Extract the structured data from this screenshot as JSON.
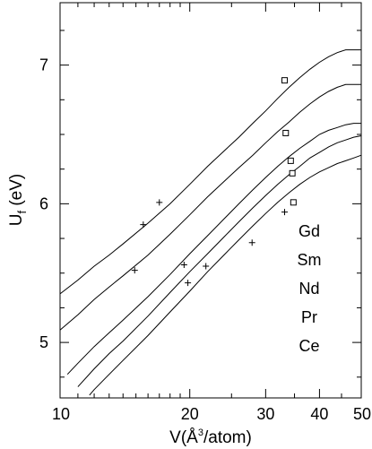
{
  "chart_data": {
    "type": "line",
    "xlabel_main": "V(",
    "xlabel_sup": "3",
    "xlabel_rest": "/atom)",
    "xlabel_angstrom": "Å",
    "ylabel_main": "U",
    "ylabel_sub": "f",
    "ylabel_rest": " (eV)",
    "x_scale": "log",
    "xlim": [
      10,
      50
    ],
    "ylim": [
      4.6,
      7.45
    ],
    "x_ticks": [
      10,
      20,
      30,
      40,
      50
    ],
    "x_tick_labels": [
      "10",
      "20",
      "30",
      "40",
      "50"
    ],
    "y_ticks": [
      5,
      6,
      7
    ],
    "y_tick_labels": [
      "5",
      "6",
      "7"
    ],
    "y_minor_ticks": [
      4.75,
      5.25,
      5.5,
      5.75,
      6.25,
      6.5,
      6.75,
      7.25
    ],
    "grid": false,
    "series": [
      {
        "name": "Gd",
        "x": [
          10,
          11,
          12,
          13,
          14,
          16,
          18,
          20,
          22,
          24,
          26,
          28,
          30,
          32,
          34,
          36,
          38,
          40,
          42,
          44,
          46,
          48,
          50
        ],
        "y": [
          5.35,
          5.45,
          5.55,
          5.63,
          5.71,
          5.86,
          6.0,
          6.14,
          6.27,
          6.38,
          6.48,
          6.58,
          6.67,
          6.76,
          6.84,
          6.91,
          6.97,
          7.02,
          7.06,
          7.09,
          7.11,
          7.11,
          7.11
        ]
      },
      {
        "name": "Sm",
        "x": [
          10,
          11,
          12,
          13,
          14,
          16,
          18,
          20,
          22,
          24,
          26,
          28,
          30,
          32,
          34,
          36,
          38,
          40,
          42,
          44,
          46,
          48,
          50
        ],
        "y": [
          5.09,
          5.2,
          5.31,
          5.4,
          5.48,
          5.63,
          5.78,
          5.92,
          6.05,
          6.16,
          6.26,
          6.35,
          6.44,
          6.52,
          6.59,
          6.66,
          6.72,
          6.77,
          6.81,
          6.84,
          6.86,
          6.86,
          6.86
        ]
      },
      {
        "name": "Nd",
        "x": [
          10.4,
          11,
          12,
          13,
          14,
          16,
          18,
          20,
          22,
          24,
          26,
          28,
          30,
          32,
          34,
          36,
          38,
          40,
          42,
          44,
          46,
          48,
          50
        ],
        "y": [
          4.77,
          4.85,
          4.97,
          5.07,
          5.16,
          5.33,
          5.49,
          5.64,
          5.77,
          5.89,
          6.0,
          6.1,
          6.19,
          6.27,
          6.34,
          6.4,
          6.45,
          6.5,
          6.53,
          6.55,
          6.57,
          6.58,
          6.58
        ]
      },
      {
        "name": "Pr",
        "x": [
          11.0,
          12,
          13,
          14,
          16,
          18,
          20,
          22,
          24,
          26,
          28,
          30,
          32,
          34,
          36,
          38,
          40,
          42,
          44,
          46,
          48,
          50
        ],
        "y": [
          4.68,
          4.81,
          4.92,
          5.01,
          5.19,
          5.36,
          5.51,
          5.64,
          5.76,
          5.87,
          5.97,
          6.06,
          6.14,
          6.21,
          6.27,
          6.33,
          6.37,
          6.41,
          6.44,
          6.46,
          6.48,
          6.49
        ]
      },
      {
        "name": "Ce",
        "x": [
          11.7,
          12,
          13,
          14,
          16,
          18,
          20,
          22,
          24,
          26,
          28,
          30,
          32,
          34,
          36,
          38,
          40,
          42,
          44,
          46,
          48,
          50
        ],
        "y": [
          4.62,
          4.66,
          4.77,
          4.87,
          5.05,
          5.22,
          5.37,
          5.51,
          5.63,
          5.74,
          5.84,
          5.93,
          6.01,
          6.08,
          6.14,
          6.19,
          6.23,
          6.26,
          6.29,
          6.31,
          6.33,
          6.35
        ]
      }
    ],
    "markers_plus": [
      {
        "x": 14.9,
        "y": 5.52
      },
      {
        "x": 15.6,
        "y": 5.85
      },
      {
        "x": 17.0,
        "y": 6.01
      },
      {
        "x": 19.4,
        "y": 5.56
      },
      {
        "x": 19.8,
        "y": 5.43
      },
      {
        "x": 21.8,
        "y": 5.55
      },
      {
        "x": 27.9,
        "y": 5.72
      },
      {
        "x": 33.2,
        "y": 5.94
      }
    ],
    "markers_square": [
      {
        "x": 33.2,
        "y": 6.89
      },
      {
        "x": 33.4,
        "y": 6.51
      },
      {
        "x": 34.3,
        "y": 6.31
      },
      {
        "x": 34.6,
        "y": 6.22
      },
      {
        "x": 34.8,
        "y": 6.01
      }
    ],
    "labels": [
      "Gd",
      "Sm",
      "Nd",
      "Pr",
      "Ce"
    ],
    "label_position": "right-side stacked list"
  }
}
